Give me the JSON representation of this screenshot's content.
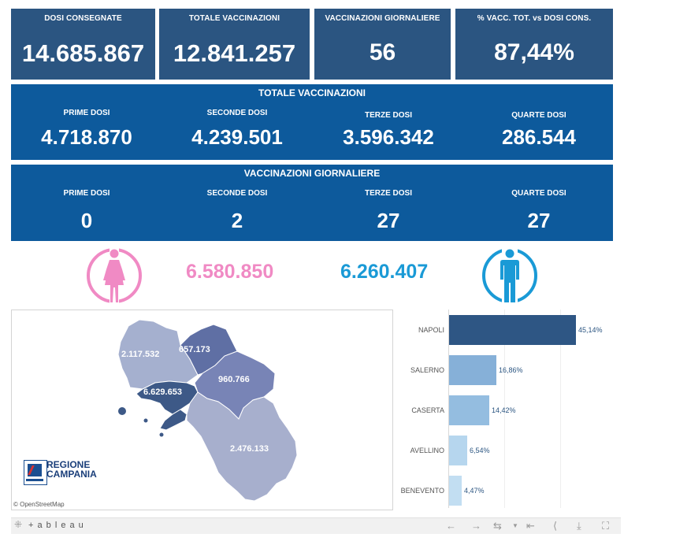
{
  "kpis": [
    {
      "label": "DOSI  CONSEGNATE",
      "value": "14.685.867"
    },
    {
      "label": "TOTALE VACCINAZIONI",
      "value": "12.841.257"
    },
    {
      "label": "VACCINAZIONI GIORNALIERE",
      "value": "56"
    },
    {
      "label": "% VACC. TOT. vs DOSI CONS.",
      "value": "87,44%"
    }
  ],
  "totale": {
    "title": "TOTALE VACCINAZIONI",
    "cols": [
      {
        "label": "PRIME DOSI",
        "value": "4.718.870"
      },
      {
        "label": "SECONDE DOSI",
        "value": "4.239.501"
      },
      {
        "label": "TERZE DOSI",
        "value": "3.596.342"
      },
      {
        "label": "QUARTE DOSI",
        "value": "286.544"
      }
    ]
  },
  "giornaliere": {
    "title": "VACCINAZIONI GIORNALIERE",
    "cols": [
      {
        "label": "PRIME DOSI",
        "value": "0"
      },
      {
        "label": "SECONDE DOSI",
        "value": "2"
      },
      {
        "label": "TERZE DOSI",
        "value": "27"
      },
      {
        "label": "QUARTE DOSI",
        "value": "27"
      }
    ]
  },
  "gender": {
    "female_value": "6.580.850",
    "male_value": "6.260.407",
    "female_color": "#f08ac4",
    "male_color": "#1a9ad6"
  },
  "map": {
    "provinces": [
      {
        "name": "Caserta",
        "value": "2.117.532"
      },
      {
        "name": "Benevento",
        "value": "657.173"
      },
      {
        "name": "Avellino",
        "value": "960.766"
      },
      {
        "name": "Napoli",
        "value": "6.629.653"
      },
      {
        "name": "Salerno",
        "value": "2.476.133"
      }
    ],
    "logo_text_1": "REGIONE",
    "logo_text_2": "CAMPANIA",
    "credit": "© OpenStreetMap"
  },
  "chart_data": {
    "type": "bar",
    "orientation": "horizontal",
    "categories": [
      "NAPOLI",
      "SALERNO",
      "CASERTA",
      "AVELLINO",
      "BENEVENTO"
    ],
    "values": [
      45.14,
      16.86,
      14.42,
      6.54,
      4.47
    ],
    "labels": [
      "45,14%",
      "16,86%",
      "14,42%",
      "6,54%",
      "4,47%"
    ],
    "colors": [
      "#2e5684",
      "#86b0d8",
      "#94bde0",
      "#b6d6ee",
      "#c2def2"
    ],
    "xlim": [
      0,
      50
    ],
    "grid": true
  },
  "toolbar": {
    "brand": "+ a b l e a u",
    "icons": [
      "undo-icon",
      "redo-icon",
      "revert-icon",
      "pause-icon",
      "share-icon",
      "download-icon",
      "fullscreen-icon"
    ]
  }
}
